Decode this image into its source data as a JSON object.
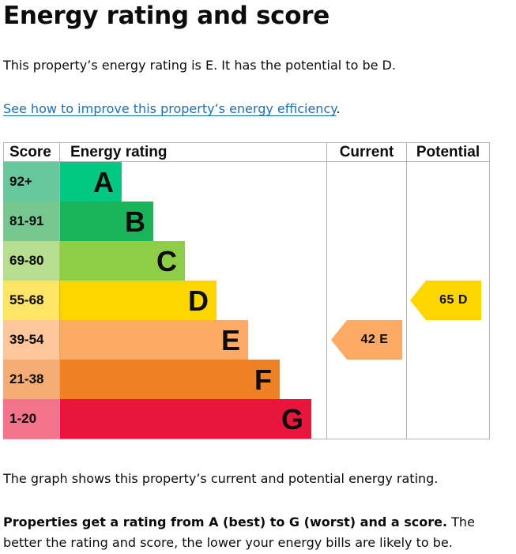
{
  "page": {
    "title": "Energy rating and score",
    "intro": "This property’s energy rating is E. It has the potential to be D.",
    "improve_link": "See how to improve this property’s energy efficiency",
    "improve_period": ".",
    "graph_note": "The graph shows this property’s current and potential energy rating.",
    "bands_note_bold": "Properties get a rating from A (best) to G (worst) and a score.",
    "bands_note_rest": " The better the rating and score, the lower your energy bills are likely to be."
  },
  "chart_data": {
    "type": "table",
    "columns": [
      "Score",
      "Energy rating",
      "Current",
      "Potential"
    ],
    "bands": [
      {
        "score": "92+",
        "rating": "A",
        "color": "#00c781",
        "score_color": "#67c89e"
      },
      {
        "score": "81-91",
        "rating": "B",
        "color": "#19b459",
        "score_color": "#75c68f"
      },
      {
        "score": "69-80",
        "rating": "C",
        "color": "#8dce46",
        "score_color": "#b7dd8f"
      },
      {
        "score": "55-68",
        "rating": "D",
        "color": "#ffd500",
        "score_color": "#ffe566"
      },
      {
        "score": "39-54",
        "rating": "E",
        "color": "#fcaa65",
        "score_color": "#fdc69b"
      },
      {
        "score": "21-38",
        "rating": "F",
        "color": "#ef8023",
        "score_color": "#f4ae75"
      },
      {
        "score": "1-20",
        "rating": "G",
        "color": "#e9153b",
        "score_color": "#f2738a"
      }
    ],
    "current": {
      "score": 42,
      "rating": "E",
      "label": "42  E",
      "color": "#fcaa65"
    },
    "potential": {
      "score": 65,
      "rating": "D",
      "label": "65  D",
      "color": "#ffd500"
    }
  }
}
